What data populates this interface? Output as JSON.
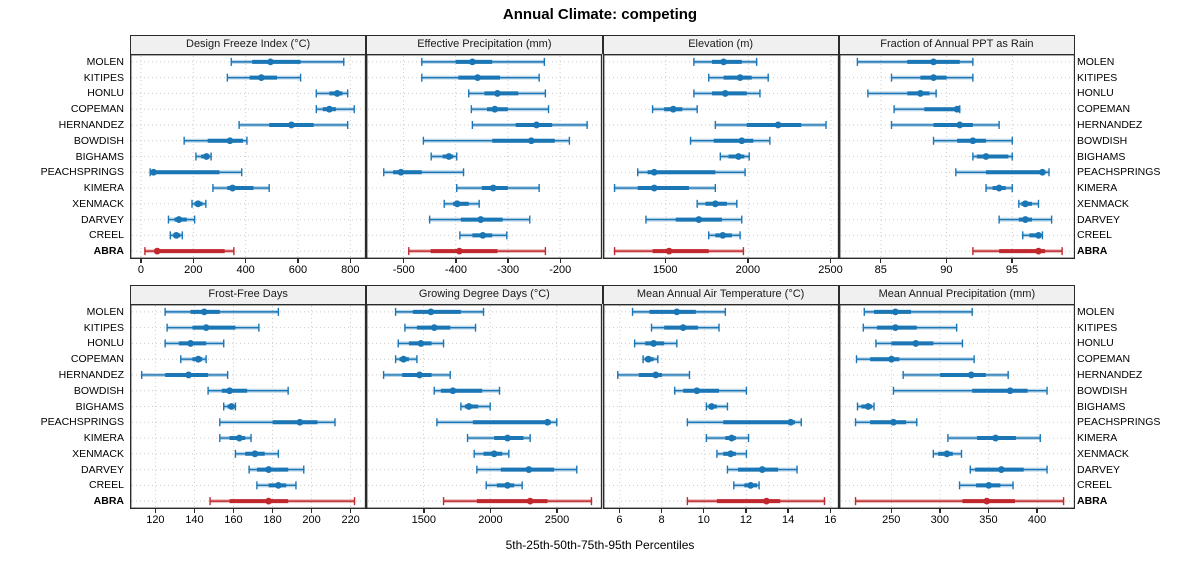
{
  "title": "Annual Climate: competing",
  "footer": {
    "xlabel": "5th-25th-50th-75th-95th Percentiles"
  },
  "percentile_labels": [
    "5th",
    "25th",
    "50th",
    "75th",
    "95th"
  ],
  "stations": [
    "MOLEN",
    "KITIPES",
    "HONLU",
    "COPEMAN",
    "HERNANDEZ",
    "BOWDISH",
    "BIGHAMS",
    "PEACHSPRINGS",
    "KIMERA",
    "XENMACK",
    "DARVEY",
    "CREEL",
    "ABRA"
  ],
  "highlight_station": "ABRA",
  "colors": {
    "series_normal": "#1b76b5",
    "series_highlight": "#c0282d",
    "grid": "#cccccc",
    "panel_border": "#2b2b2b",
    "header_bg": "#f0f0f0",
    "text": "#000000"
  },
  "chart_data": {
    "type": "scatter",
    "mark": "median dot with 5-95 whisker and 25-75 thick interval, one row per station",
    "legend": "none",
    "grid": "dotted",
    "layout": "2 rows x 4 columns trellis, station labels on both left and right",
    "categories": [
      "MOLEN",
      "KITIPES",
      "HONLU",
      "COPEMAN",
      "HERNANDEZ",
      "BOWDISH",
      "BIGHAMS",
      "PEACHSPRINGS",
      "KIMERA",
      "XENMACK",
      "DARVEY",
      "CREEL",
      "ABRA"
    ],
    "panels": [
      {
        "title": "Design Freeze Index (°C)",
        "xlim": [
          -42,
          861
        ],
        "ticks": [
          0,
          200,
          400,
          600,
          800
        ],
        "values": [
          [
            345,
            425,
            495,
            610,
            775
          ],
          [
            330,
            415,
            460,
            520,
            610
          ],
          [
            670,
            720,
            750,
            770,
            790
          ],
          [
            670,
            695,
            720,
            745,
            815
          ],
          [
            375,
            490,
            575,
            660,
            790
          ],
          [
            165,
            255,
            340,
            390,
            405
          ],
          [
            210,
            230,
            250,
            262,
            268
          ],
          [
            35,
            42,
            48,
            300,
            385
          ],
          [
            275,
            330,
            350,
            430,
            490
          ],
          [
            195,
            205,
            218,
            235,
            248
          ],
          [
            105,
            128,
            145,
            175,
            205
          ],
          [
            112,
            125,
            135,
            150,
            158
          ],
          [
            15,
            52,
            62,
            320,
            355
          ]
        ]
      },
      {
        "title": "Effective Precipitation (mm)",
        "xlim": [
          -572,
          -119
        ],
        "ticks": [
          -500,
          -400,
          -300,
          -200
        ],
        "values": [
          [
            -465,
            -400,
            -368,
            -330,
            -230
          ],
          [
            -465,
            -395,
            -358,
            -315,
            -240
          ],
          [
            -375,
            -345,
            -320,
            -280,
            -228
          ],
          [
            -370,
            -340,
            -325,
            -300,
            -222
          ],
          [
            -368,
            -285,
            -245,
            -215,
            -148
          ],
          [
            -462,
            -330,
            -255,
            -210,
            -182
          ],
          [
            -447,
            -425,
            -413,
            -405,
            -398
          ],
          [
            -538,
            -520,
            -505,
            -465,
            -385
          ],
          [
            -398,
            -350,
            -328,
            -300,
            -240
          ],
          [
            -422,
            -405,
            -397,
            -375,
            -355
          ],
          [
            -450,
            -390,
            -352,
            -310,
            -258
          ],
          [
            -392,
            -368,
            -348,
            -330,
            -302
          ],
          [
            -490,
            -448,
            -393,
            -320,
            -228
          ]
        ]
      },
      {
        "title": "Elevation (m)",
        "xlim": [
          1120,
          2550
        ],
        "ticks": [
          1500,
          2000,
          2500
        ],
        "values": [
          [
            1670,
            1780,
            1850,
            1960,
            2050
          ],
          [
            1760,
            1850,
            1950,
            2020,
            2120
          ],
          [
            1670,
            1780,
            1860,
            1990,
            2070
          ],
          [
            1420,
            1490,
            1545,
            1600,
            1690
          ],
          [
            1800,
            1990,
            2180,
            2320,
            2470
          ],
          [
            1650,
            1790,
            1960,
            2030,
            2130
          ],
          [
            1830,
            1880,
            1940,
            1975,
            2005
          ],
          [
            1330,
            1390,
            1430,
            1800,
            1980
          ],
          [
            1190,
            1330,
            1430,
            1640,
            1800
          ],
          [
            1690,
            1740,
            1800,
            1870,
            1930
          ],
          [
            1380,
            1560,
            1700,
            1840,
            1960
          ],
          [
            1760,
            1800,
            1845,
            1900,
            1950
          ],
          [
            1190,
            1420,
            1520,
            1760,
            1970
          ]
        ]
      },
      {
        "title": "Fraction of Annual PPT as Rain",
        "xlim": [
          81.8,
          99.8
        ],
        "ticks": [
          85,
          90,
          95
        ],
        "values": [
          [
            83.2,
            87,
            89,
            91,
            92
          ],
          [
            85.8,
            88,
            89,
            90,
            92
          ],
          [
            84,
            87,
            88,
            88.7,
            89.2
          ],
          [
            86,
            88.3,
            90.8,
            90.9,
            91
          ],
          [
            85.8,
            89,
            91,
            92,
            94
          ],
          [
            89,
            90.8,
            92,
            93,
            95
          ],
          [
            92,
            92.3,
            93,
            94.7,
            95
          ],
          [
            90.7,
            93,
            97.3,
            97.5,
            97.8
          ],
          [
            93,
            93.5,
            94,
            94.5,
            95
          ],
          [
            95.5,
            95.7,
            96,
            96.5,
            97
          ],
          [
            94,
            95.5,
            96,
            96.5,
            98
          ],
          [
            95.8,
            96.3,
            97,
            97.1,
            97.3
          ],
          [
            92,
            94,
            97,
            97.5,
            98.8
          ]
        ]
      },
      {
        "title": "Frost-Free Days",
        "xlim": [
          107,
          228
        ],
        "ticks": [
          120,
          140,
          160,
          180,
          200,
          220
        ],
        "values": [
          [
            125,
            138,
            145,
            153,
            183
          ],
          [
            126,
            139,
            146,
            161,
            173
          ],
          [
            125,
            132,
            138,
            146,
            155
          ],
          [
            133,
            139,
            142,
            144,
            146
          ],
          [
            113,
            125,
            137,
            147,
            157
          ],
          [
            147,
            154,
            158,
            167,
            188
          ],
          [
            155,
            157,
            159,
            160,
            161
          ],
          [
            153,
            180,
            194,
            203,
            212
          ],
          [
            153,
            158,
            163,
            166,
            169
          ],
          [
            161,
            166,
            171,
            176,
            183
          ],
          [
            168,
            172,
            178,
            188,
            196
          ],
          [
            172,
            178,
            183,
            187,
            192
          ],
          [
            148,
            158,
            178,
            188,
            222
          ]
        ]
      },
      {
        "title": "Growing Degree Days (°C)",
        "xlim": [
          1068,
          2841
        ],
        "ticks": [
          1500,
          2000,
          2500
        ],
        "values": [
          [
            1290,
            1420,
            1555,
            1780,
            1950
          ],
          [
            1360,
            1450,
            1580,
            1700,
            1890
          ],
          [
            1310,
            1390,
            1480,
            1560,
            1650
          ],
          [
            1290,
            1320,
            1350,
            1390,
            1450
          ],
          [
            1200,
            1340,
            1470,
            1560,
            1700
          ],
          [
            1580,
            1630,
            1720,
            1940,
            2070
          ],
          [
            1780,
            1810,
            1840,
            1910,
            2000
          ],
          [
            1600,
            1870,
            2430,
            2455,
            2500
          ],
          [
            1830,
            2030,
            2130,
            2250,
            2300
          ],
          [
            1880,
            1950,
            2030,
            2090,
            2140
          ],
          [
            1900,
            2080,
            2290,
            2480,
            2650
          ],
          [
            1970,
            2050,
            2130,
            2180,
            2240
          ],
          [
            1650,
            1900,
            2300,
            2430,
            2760
          ]
        ]
      },
      {
        "title": "Mean Annual Air Temperature (°C)",
        "xlim": [
          5.2,
          16.4
        ],
        "ticks": [
          6,
          8,
          10,
          12,
          14,
          16
        ],
        "values": [
          [
            6.6,
            7.4,
            8.7,
            9.6,
            11.0
          ],
          [
            7.5,
            8.1,
            9.0,
            9.7,
            10.7
          ],
          [
            6.7,
            7.2,
            7.6,
            8.1,
            8.7
          ],
          [
            7.1,
            7.2,
            7.35,
            7.6,
            7.8
          ],
          [
            5.9,
            6.9,
            7.7,
            8.0,
            9.3
          ],
          [
            8.6,
            9.0,
            9.65,
            10.7,
            12.0
          ],
          [
            10.1,
            10.2,
            10.35,
            10.6,
            11.1
          ],
          [
            9.2,
            10.9,
            14.1,
            14.3,
            14.6
          ],
          [
            10.1,
            11.0,
            11.3,
            11.5,
            12.1
          ],
          [
            10.6,
            10.9,
            11.25,
            11.5,
            12.0
          ],
          [
            11.1,
            11.6,
            12.75,
            13.5,
            14.4
          ],
          [
            11.4,
            11.9,
            12.2,
            12.5,
            12.6
          ],
          [
            9.2,
            10.6,
            12.95,
            13.6,
            15.7
          ]
        ]
      },
      {
        "title": "Mean Annual Precipitation (mm)",
        "xlim": [
          196,
          439
        ],
        "ticks": [
          250,
          300,
          350,
          400
        ],
        "values": [
          [
            222,
            232,
            254,
            270,
            333
          ],
          [
            221,
            235,
            254,
            276,
            317
          ],
          [
            234,
            250,
            275,
            293,
            323
          ],
          [
            214,
            228,
            250,
            258,
            335
          ],
          [
            262,
            300,
            332,
            347,
            370
          ],
          [
            252,
            333,
            372,
            390,
            410
          ],
          [
            215,
            219,
            226,
            230,
            232
          ],
          [
            213,
            228,
            252,
            265,
            276
          ],
          [
            308,
            338,
            357,
            378,
            403
          ],
          [
            293,
            298,
            307,
            313,
            322
          ],
          [
            331,
            336,
            363,
            386,
            410
          ],
          [
            320,
            337,
            350,
            362,
            375
          ],
          [
            213,
            323,
            348,
            377,
            427
          ]
        ]
      }
    ]
  }
}
